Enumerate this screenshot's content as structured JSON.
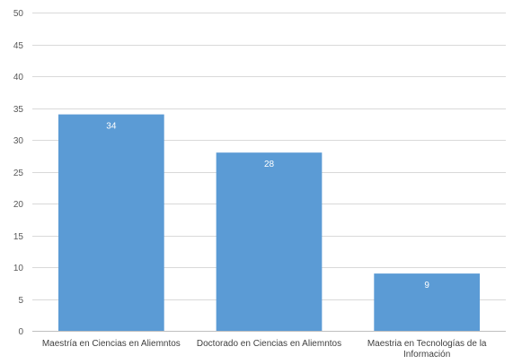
{
  "chart_data": {
    "type": "bar",
    "title": "",
    "xlabel": "",
    "ylabel": "",
    "categories": [
      [
        "Maestría en Ciencias en Aliemntos"
      ],
      [
        "Doctorado en Ciencias en Aliemntos"
      ],
      [
        "Maestria en Tecnologías de la",
        "Información"
      ]
    ],
    "values": [
      34,
      28,
      9
    ],
    "y_ticks": [
      "0",
      "5",
      "10",
      "15",
      "20",
      "25",
      "30",
      "35",
      "40",
      "45",
      "50"
    ],
    "ylim": [
      0,
      50
    ],
    "grid": true,
    "legend": "none",
    "data_labels": true,
    "bar_color": "#5b9bd5",
    "grid_color": "#d9d9d9"
  }
}
